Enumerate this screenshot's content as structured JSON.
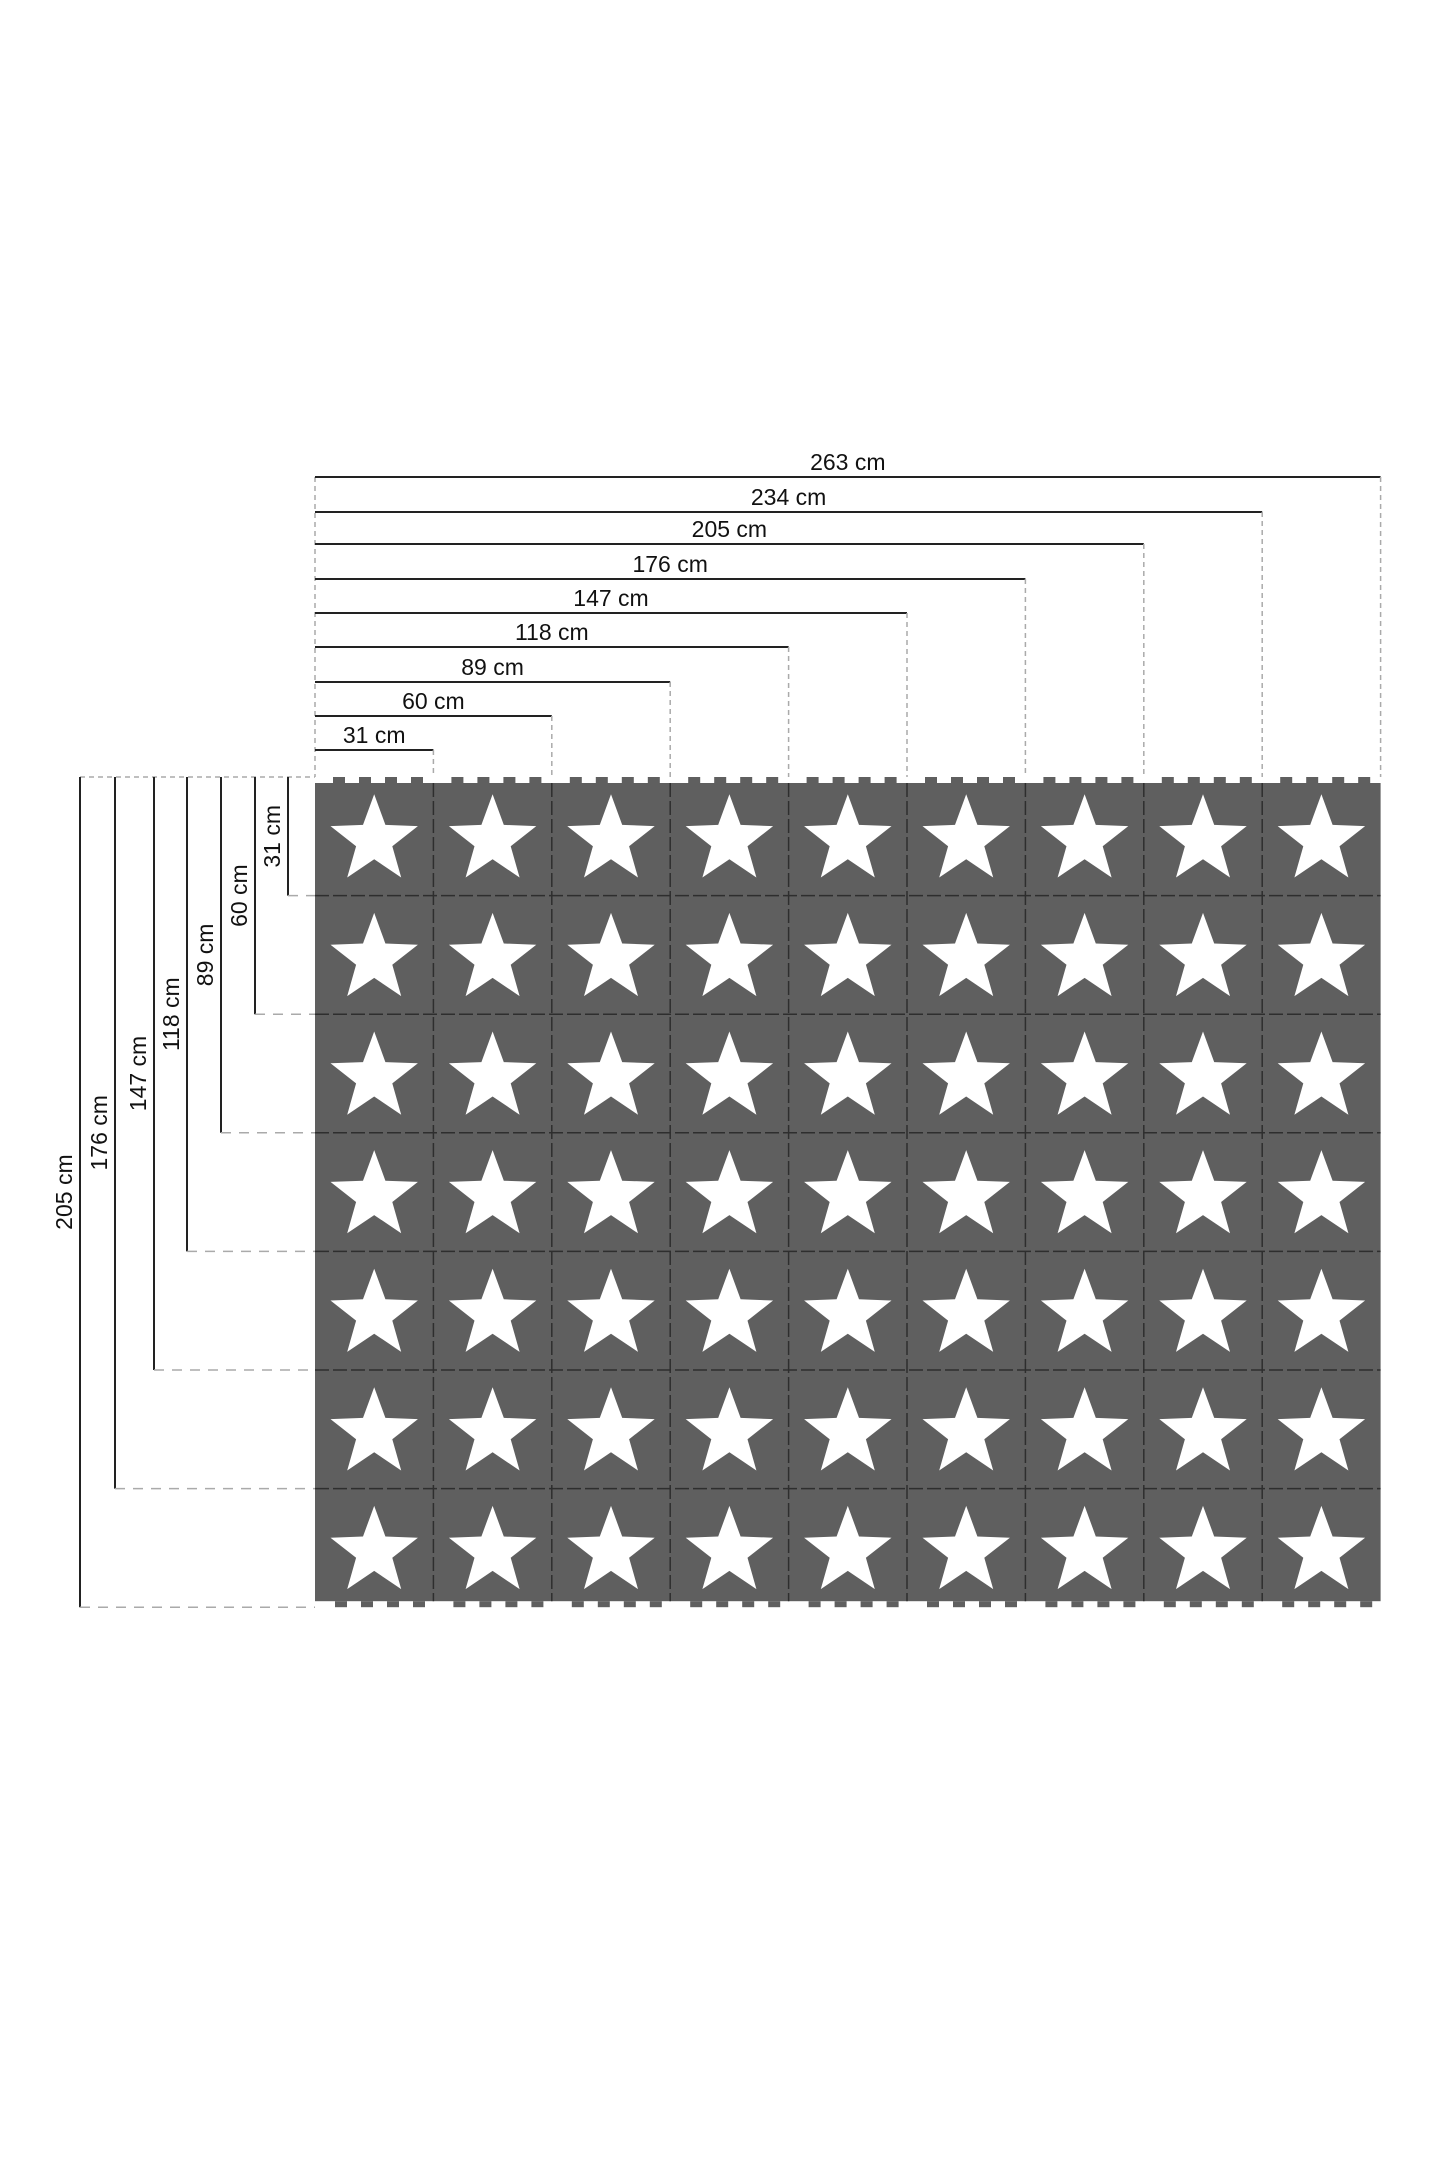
{
  "diagram": {
    "width_labels": [
      "31 cm",
      "60 cm",
      "89 cm",
      "118 cm",
      "147 cm",
      "176 cm",
      "205 cm",
      "234 cm",
      "263 cm"
    ],
    "height_labels": [
      "31 cm",
      "60 cm",
      "89 cm",
      "118 cm",
      "147 cm",
      "176 cm",
      "205 cm"
    ],
    "grid": {
      "columns": 9,
      "rows": 7,
      "tile_icon": "star-icon"
    },
    "colors": {
      "tile": "#5f5f5f",
      "star": "#ffffff",
      "line": "#222222",
      "dash": "#aaaaaa"
    }
  }
}
